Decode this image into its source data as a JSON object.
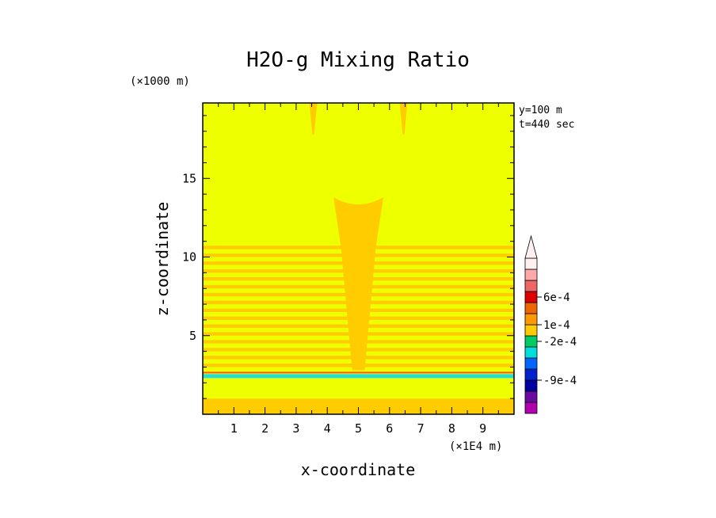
{
  "chart_data": {
    "type": "heatmap",
    "title": "H2O-g Mixing Ratio",
    "xlabel": "x-coordinate",
    "ylabel": "z-coordinate",
    "x_unit": "(×1E4 m)",
    "y_unit": "(×1000 m)",
    "xlim": [
      0,
      10
    ],
    "ylim": [
      0,
      19.8
    ],
    "x_ticks": [
      "1",
      "2",
      "3",
      "4",
      "5",
      "6",
      "7",
      "8",
      "9"
    ],
    "y_ticks": [
      "5",
      "10",
      "15"
    ],
    "info": [
      "y=100 m",
      "t=440 sec"
    ],
    "background_color": "#eeff00",
    "field_layers": [
      {
        "name": "lower-band",
        "z0": 0,
        "z1": 1.0,
        "color": "#ffcc00"
      },
      {
        "name": "cyan-band",
        "z0": 2.3,
        "z1": 2.55,
        "color": "#22dddd"
      },
      {
        "name": "red-line",
        "z0": 2.6,
        "z1": 2.7,
        "color": "#ff5500"
      }
    ],
    "stripes": {
      "z0": 3.0,
      "z1": 10.6,
      "step": 0.5,
      "thickness": 0.22,
      "color": "#ffcc00"
    },
    "plume": {
      "x_center": 5.0,
      "top": 13.8,
      "top_width": 1.6,
      "bottom_width": 0.4,
      "color": "#ffcc00"
    },
    "top_spikes": [
      {
        "x": 3.55,
        "color": "#ffcc00"
      },
      {
        "x": 6.45,
        "color": "#ffcc00"
      }
    ],
    "colorbar": {
      "colors": [
        "#b000b0",
        "#6a0aa0",
        "#0000a0",
        "#0022cc",
        "#0066ff",
        "#00dddd",
        "#00cc66",
        "#ffcc00",
        "#ff9900",
        "#ee6600",
        "#dd0000",
        "#ee6666",
        "#ffaaaa",
        "#fff0f0"
      ],
      "labels": [
        {
          "text": "6e-4",
          "index": 10.5
        },
        {
          "text": "1e-4",
          "index": 8.0
        },
        {
          "text": "-2e-4",
          "index": 6.5
        },
        {
          "text": "-9e-4",
          "index": 3.0
        }
      ]
    }
  }
}
